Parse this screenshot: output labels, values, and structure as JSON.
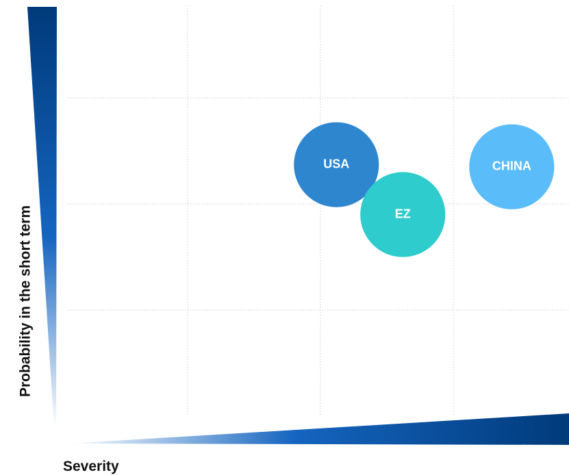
{
  "chart_data": {
    "type": "bubble",
    "x_label": "Severity",
    "y_label": "Probability in the short term",
    "xlim": [
      0,
      4
    ],
    "ylim": [
      0,
      4
    ],
    "xticks": [
      1,
      2,
      3
    ],
    "yticks": [
      1,
      2,
      3
    ],
    "grid": true,
    "points": [
      {
        "label": "USA",
        "x": 2.12,
        "y": 2.37,
        "size": 0.32,
        "color": "#2e86cf"
      },
      {
        "label": "EZ",
        "x": 2.62,
        "y": 1.9,
        "size": 0.32,
        "color": "#2ecccc"
      },
      {
        "label": "CHINA",
        "x": 3.44,
        "y": 2.35,
        "size": 0.32,
        "color": "#5bbcfa"
      }
    ]
  }
}
